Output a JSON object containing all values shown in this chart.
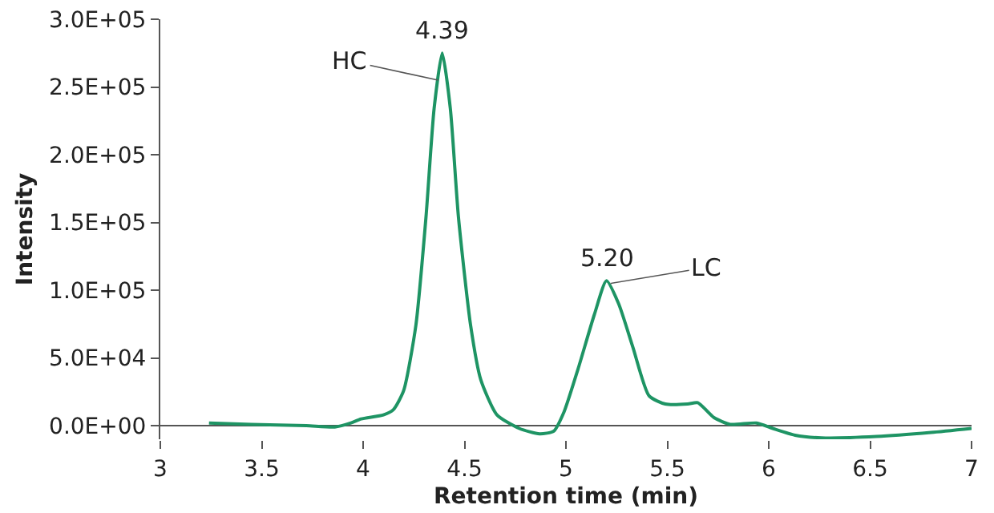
{
  "chart_data": {
    "type": "line",
    "xlabel": "Retention time (min)",
    "ylabel": "Intensity",
    "series": [
      {
        "color": "#1e9464",
        "x": [
          3.24,
          3.45,
          3.72,
          3.86,
          3.94,
          3.99,
          4.1,
          4.15,
          4.2,
          4.26,
          4.31,
          4.35,
          4.39,
          4.43,
          4.47,
          4.53,
          4.58,
          4.66,
          4.77,
          4.87,
          4.94,
          4.99,
          5.06,
          5.14,
          5.2,
          5.26,
          5.33,
          5.41,
          5.49,
          5.6,
          5.65,
          5.73,
          5.81,
          5.94,
          6.02,
          6.13,
          6.26,
          6.53,
          6.8,
          7.0
        ],
        "values": [
          2000,
          1000,
          0,
          -1000,
          2000,
          5000,
          8000,
          12000,
          26000,
          74000,
          154000,
          234000,
          275000,
          234000,
          154000,
          74000,
          34000,
          8000,
          -2000,
          -6000,
          -4000,
          10000,
          42000,
          82000,
          107000,
          90000,
          58000,
          22000,
          16000,
          16000,
          17000,
          6000,
          1000,
          2000,
          -2000,
          -7000,
          -9000,
          -8000,
          -5000,
          -2000
        ]
      }
    ],
    "annotations": [
      {
        "text": "4.39",
        "x": 4.39,
        "y": 275000
      },
      {
        "text": "HC",
        "x": 4.37,
        "y": 255000
      },
      {
        "text": "5.20",
        "x": 5.2,
        "y": 107000
      },
      {
        "text": "LC",
        "x": 5.22,
        "y": 105000
      }
    ],
    "xlim": [
      3,
      7
    ],
    "xticks": [
      3,
      3.5,
      4,
      4.5,
      5,
      5.5,
      6,
      6.5,
      7
    ],
    "ylim": [
      -10000,
      300000
    ],
    "yticks": [
      {
        "value": 0,
        "label": "0.0E+00"
      },
      {
        "value": 50000,
        "label": "5.0E+04"
      },
      {
        "value": 100000,
        "label": "1.0E+05"
      },
      {
        "value": 150000,
        "label": "1.5E+05"
      },
      {
        "value": 200000,
        "label": "2.0E+05"
      },
      {
        "value": 250000,
        "label": "2.5E+05"
      },
      {
        "value": 300000,
        "label": "3.0E+05"
      }
    ],
    "marker": "none",
    "line_style": "solid"
  }
}
